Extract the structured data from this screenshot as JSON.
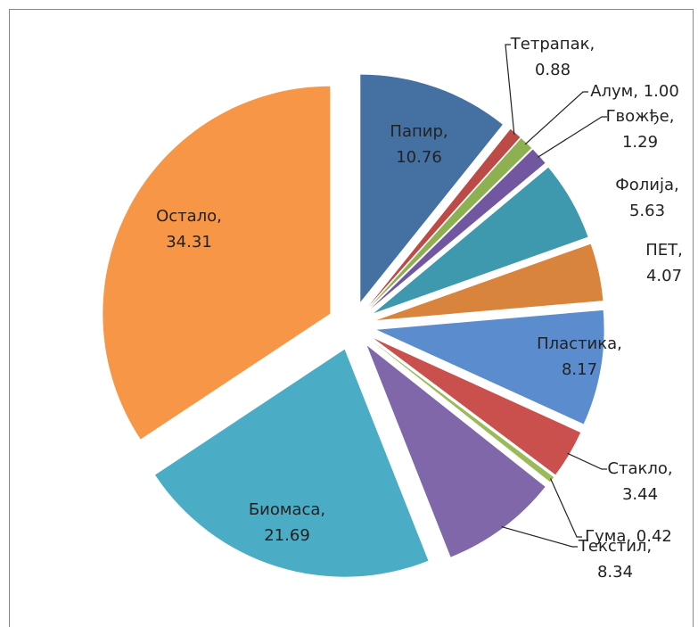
{
  "chart_data": {
    "type": "pie",
    "labels": [
      [
        "Папир,",
        "10.76"
      ],
      [
        "Тетрапак,",
        "0.88"
      ],
      [
        "Алум, 1.00"
      ],
      [
        "Гвожђе,",
        "1.29"
      ],
      [
        "Фолија,",
        "5.63"
      ],
      [
        "ПЕТ,",
        "4.07"
      ],
      [
        "Пластика,",
        "8.17"
      ],
      [
        "Стакло,",
        "3.44"
      ],
      [
        "Гума, 0.42"
      ],
      [
        "Текстил,",
        "8.34"
      ],
      [
        "Биомаса,",
        "21.69"
      ],
      [
        "Остало,",
        "34.31"
      ]
    ],
    "values": [
      10.76,
      0.88,
      1.0,
      1.29,
      5.63,
      4.07,
      8.17,
      3.44,
      0.42,
      8.34,
      21.69,
      34.31
    ],
    "colors": [
      "#4470A2",
      "#BC4B48",
      "#8DB150",
      "#7057A0",
      "#3F99AE",
      "#D9843C",
      "#5B8CCE",
      "#C9504D",
      "#9BBB59",
      "#8067AA",
      "#4BACC6",
      "#F79646"
    ]
  }
}
